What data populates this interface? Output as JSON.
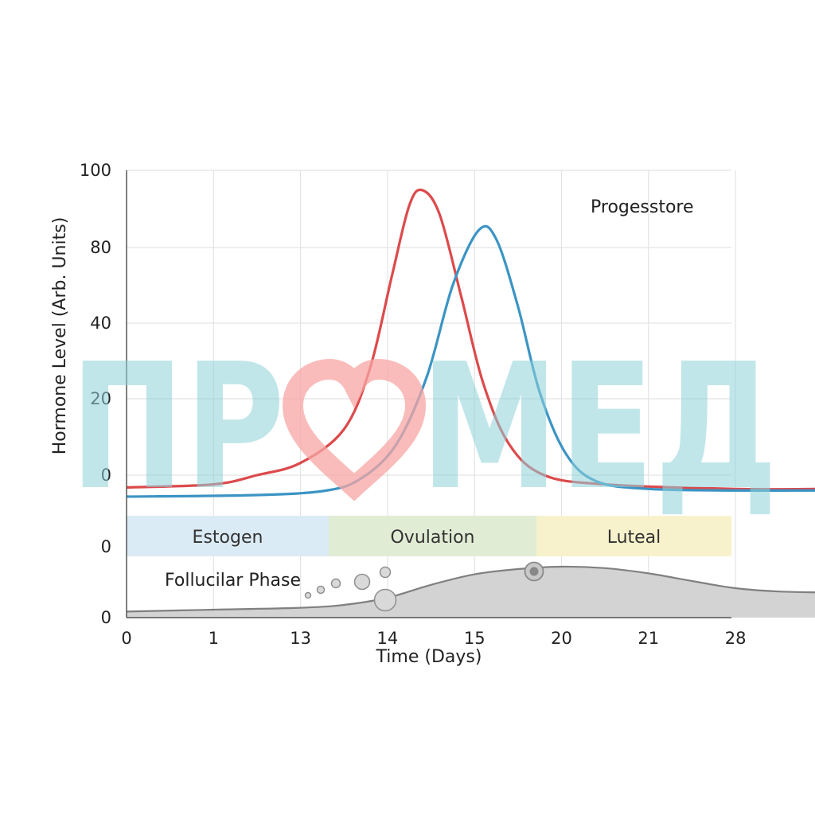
{
  "chart_data": {
    "type": "line",
    "xlabel": "Time (Days)",
    "ylabel": "Hormone Level (Arb. Units)",
    "x_ticks": [
      "0",
      "1",
      "13",
      "14",
      "15",
      "20",
      "21",
      "28"
    ],
    "y_ticks_upper": [
      "100",
      "80",
      "40",
      "20",
      "0"
    ],
    "y_ticks_lower": [
      "0",
      "0"
    ],
    "annotation": "Progesstore",
    "series": [
      {
        "color": "#dc4a4c",
        "points": [
          [
            0,
            -4
          ],
          [
            1,
            -3
          ],
          [
            1.5,
            0
          ],
          [
            2,
            4
          ],
          [
            2.5,
            15
          ],
          [
            2.8,
            35
          ],
          [
            3.05,
            65
          ],
          [
            3.25,
            88
          ],
          [
            3.4,
            93
          ],
          [
            3.6,
            85
          ],
          [
            3.85,
            58
          ],
          [
            4.1,
            30
          ],
          [
            4.4,
            10
          ],
          [
            4.8,
            0
          ],
          [
            5.5,
            -3
          ],
          [
            7,
            -4.5
          ],
          [
            8,
            -4.5
          ]
        ]
      },
      {
        "color": "#3b94c4",
        "points": [
          [
            0,
            -7
          ],
          [
            1.5,
            -6.5
          ],
          [
            2.3,
            -5
          ],
          [
            2.7,
            -1
          ],
          [
            3.1,
            10
          ],
          [
            3.45,
            32
          ],
          [
            3.75,
            62
          ],
          [
            4.05,
            80
          ],
          [
            4.25,
            77
          ],
          [
            4.5,
            55
          ],
          [
            4.75,
            27
          ],
          [
            5.05,
            7
          ],
          [
            5.4,
            -2
          ],
          [
            6,
            -4.5
          ],
          [
            7,
            -5
          ],
          [
            8,
            -5
          ]
        ]
      }
    ],
    "phases": [
      {
        "label": "Estogen",
        "color": "#dbebf5"
      },
      {
        "label": "Ovulation",
        "color": "#e1ecd5"
      },
      {
        "label": "Luteal",
        "color": "#f8f2cc"
      }
    ],
    "lower_panel": {
      "label": "Follucilar Phase",
      "area_color": "#d3d3d3",
      "line_color": "#808080",
      "points": [
        [
          0,
          0.06
        ],
        [
          1,
          0.1
        ],
        [
          2,
          0.14
        ],
        [
          2.5,
          0.2
        ],
        [
          3,
          0.35
        ],
        [
          3.5,
          0.62
        ],
        [
          4,
          0.84
        ],
        [
          4.5,
          0.95
        ],
        [
          5,
          1.0
        ],
        [
          5.5,
          0.97
        ],
        [
          6,
          0.86
        ],
        [
          6.5,
          0.7
        ],
        [
          7,
          0.55
        ],
        [
          7.5,
          0.48
        ],
        [
          8,
          0.46
        ]
      ]
    },
    "grid": true
  },
  "watermark": {
    "text_left": "ПР",
    "text_right": "МЕД",
    "heart_color": "#f7a6a4"
  }
}
